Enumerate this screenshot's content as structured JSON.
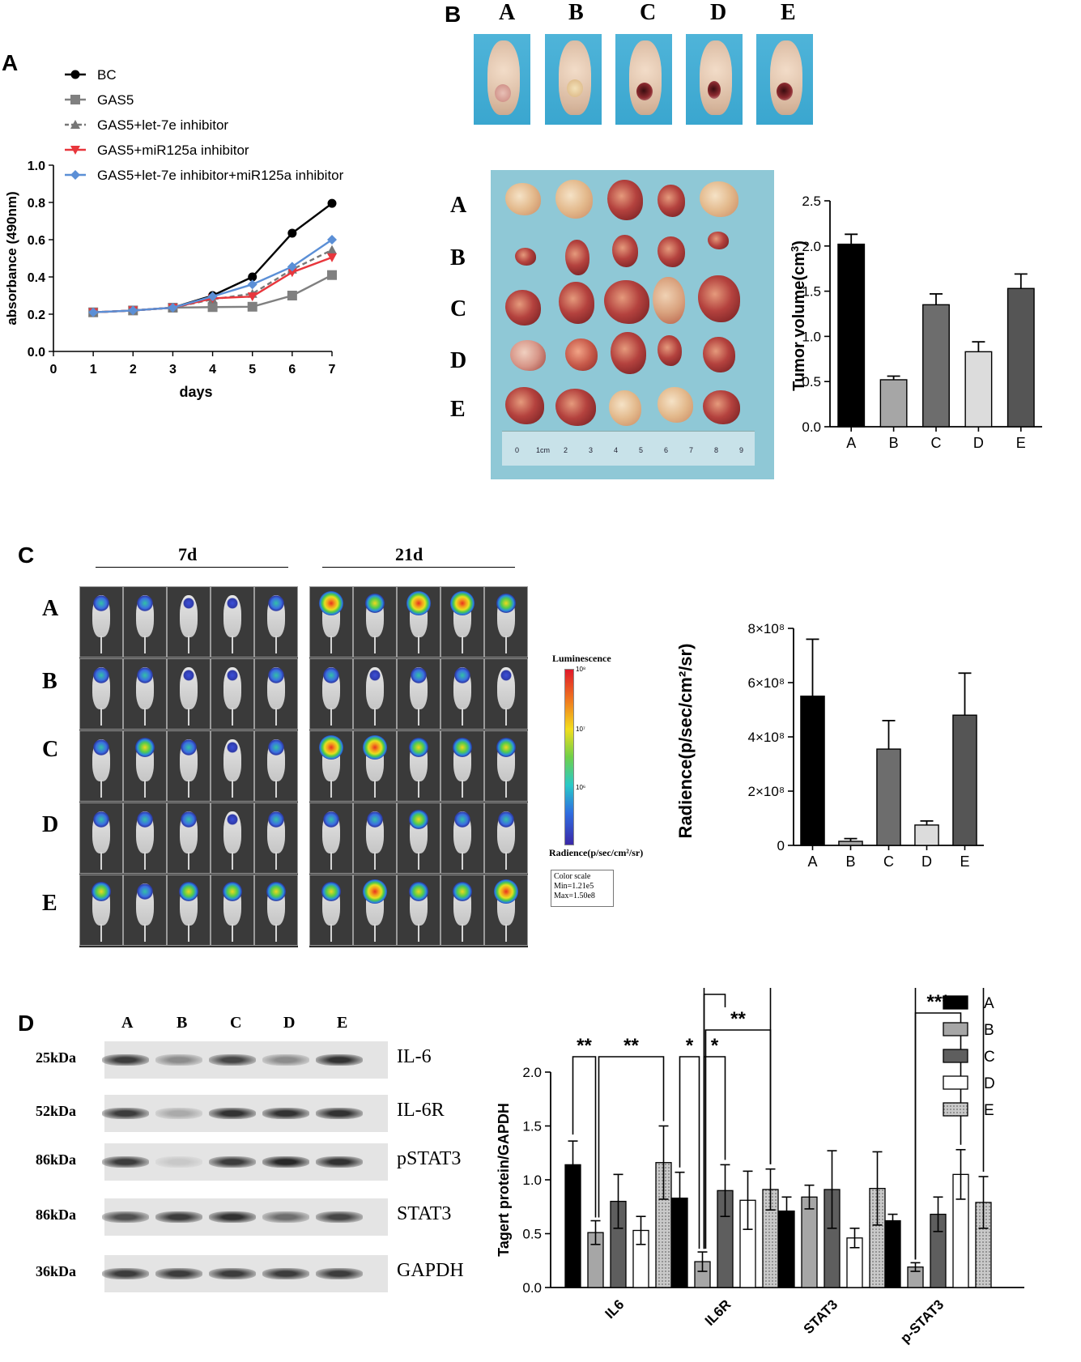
{
  "panels": {
    "a": "A",
    "b": "B",
    "c": "C",
    "d": "D"
  },
  "chart_data": [
    {
      "id": "growth",
      "type": "line",
      "xlabel": "days",
      "ylabel": "absorbance (490nm)",
      "xlim": [
        0,
        7
      ],
      "ylim": [
        0,
        1.0
      ],
      "x_ticks": [
        "0",
        "1",
        "2",
        "3",
        "4",
        "5",
        "6",
        "7"
      ],
      "y_ticks": [
        "0.0",
        "0.2",
        "0.4",
        "0.6",
        "0.8",
        "1.0"
      ],
      "x": [
        1,
        2,
        3,
        4,
        5,
        6,
        7
      ],
      "series": [
        {
          "name": "BC",
          "color": "#000000",
          "marker": "circle",
          "dashed": false,
          "values": [
            0.21,
            0.22,
            0.235,
            0.3,
            0.4,
            0.635,
            0.795
          ]
        },
        {
          "name": "GAS5",
          "color": "#808080",
          "marker": "square",
          "dashed": false,
          "values": [
            0.21,
            0.22,
            0.235,
            0.238,
            0.24,
            0.3,
            0.41
          ]
        },
        {
          "name": "GAS5+let-7e inhibitor",
          "color": "#777777",
          "marker": "triangle",
          "dashed": true,
          "values": [
            0.21,
            0.22,
            0.235,
            0.28,
            0.31,
            0.44,
            0.545
          ]
        },
        {
          "name": "GAS5+miR125a inhibitor",
          "color": "#e8363c",
          "marker": "triangle-down",
          "dashed": false,
          "values": [
            0.21,
            0.22,
            0.235,
            0.285,
            0.295,
            0.425,
            0.505
          ]
        },
        {
          "name": "GAS5+let-7e inhibitor+miR125a inhibitor",
          "color": "#5b8fd6",
          "marker": "diamond",
          "dashed": false,
          "values": [
            0.21,
            0.22,
            0.235,
            0.295,
            0.36,
            0.455,
            0.6
          ]
        }
      ]
    },
    {
      "id": "tumor-volume",
      "type": "bar",
      "ylabel": "Tumor volume(cm3)",
      "ylabel_main": "Tumor volume(cm",
      "ylabel_sup": "3",
      "ylabel_end": ")",
      "ylim": [
        0,
        2.5
      ],
      "y_ticks": [
        "0.0",
        "0.5",
        "1.0",
        "1.5",
        "2.0",
        "2.5"
      ],
      "categories": [
        "A",
        "B",
        "C",
        "D",
        "E"
      ],
      "values": [
        2.02,
        0.52,
        1.35,
        0.83,
        1.53
      ],
      "errors": [
        0.11,
        0.04,
        0.12,
        0.11,
        0.16
      ],
      "colors": [
        "#000000",
        "#a6a6a6",
        "#6d6d6d",
        "#dcdcdc",
        "#555555"
      ]
    },
    {
      "id": "radiance",
      "type": "bar",
      "ylabel": "Radience(p/sec/cm²/sr)",
      "ylim": [
        0,
        800000000
      ],
      "y_ticks": [
        "0",
        "2×10⁸",
        "4×10⁸",
        "6×10⁸",
        "8×10⁸"
      ],
      "categories": [
        "A",
        "B",
        "C",
        "D",
        "E"
      ],
      "values": [
        550000000,
        15000000,
        355000000,
        75000000,
        480000000
      ],
      "errors": [
        210000000,
        10000000,
        105000000,
        15000000,
        155000000
      ],
      "colors": [
        "#000000",
        "#a6a6a6",
        "#6d6d6d",
        "#dcdcdc",
        "#555555"
      ]
    },
    {
      "id": "protein",
      "type": "bar",
      "ylabel": "Tagert protein/GAPDH",
      "ylim": [
        0,
        2.0
      ],
      "y_ticks": [
        "0.0",
        "0.5",
        "1.0",
        "1.5",
        "2.0"
      ],
      "categories": [
        "IL6",
        "IL6R",
        "STAT3",
        "p-STAT3"
      ],
      "series": [
        {
          "name": "A",
          "values": [
            1.14,
            0.83,
            0.71,
            0.62
          ],
          "errors": [
            0.22,
            0.24,
            0.13,
            0.06
          ]
        },
        {
          "name": "B",
          "values": [
            0.51,
            0.24,
            0.84,
            0.19
          ],
          "errors": [
            0.11,
            0.09,
            0.11,
            0.04
          ]
        },
        {
          "name": "C",
          "values": [
            0.8,
            0.9,
            0.91,
            0.68
          ],
          "errors": [
            0.25,
            0.24,
            0.36,
            0.16
          ]
        },
        {
          "name": "D",
          "values": [
            0.53,
            0.81,
            0.46,
            1.05
          ],
          "errors": [
            0.13,
            0.27,
            0.09,
            0.23
          ]
        },
        {
          "name": "E",
          "values": [
            1.16,
            0.91,
            0.92,
            0.79
          ],
          "errors": [
            0.34,
            0.19,
            0.34,
            0.24
          ]
        }
      ],
      "significance": [
        "**",
        "**",
        "*",
        "**",
        "**",
        "*",
        "*",
        "***"
      ]
    }
  ],
  "panel_b": {
    "photo_labels": [
      "A",
      "B",
      "C",
      "D",
      "E"
    ],
    "row_labels": [
      "A",
      "B",
      "C",
      "D",
      "E"
    ],
    "ruler_labels": [
      "0",
      "1cm",
      "2",
      "3",
      "4",
      "5",
      "6",
      "7",
      "8",
      "9"
    ]
  },
  "panel_c": {
    "time_labels": [
      "7d",
      "21d"
    ],
    "row_labels": [
      "A",
      "B",
      "C",
      "D",
      "E"
    ],
    "scale_title": "Luminescence",
    "scale_unit": "Radience(p/sec/cm²/sr)",
    "scale_ticks": [
      "10⁸",
      "10⁷",
      "10⁶"
    ],
    "color_scale": {
      "title": "Color scale",
      "min": "Min=1.21e5",
      "max": "Max=1.50e8"
    }
  },
  "panel_d": {
    "lane_labels": [
      "A",
      "B",
      "C",
      "D",
      "E"
    ],
    "blots": [
      {
        "size": "25kDa",
        "protein": "IL-6",
        "intensity": [
          0.85,
          0.45,
          0.8,
          0.45,
          0.9
        ]
      },
      {
        "size": "52kDa",
        "protein": "IL-6R",
        "intensity": [
          0.85,
          0.3,
          0.9,
          0.9,
          0.9
        ]
      },
      {
        "size": "86kDa",
        "protein": "pSTAT3",
        "intensity": [
          0.85,
          0.15,
          0.85,
          0.95,
          0.9
        ]
      },
      {
        "size": "86kDa",
        "protein": "STAT3",
        "intensity": [
          0.75,
          0.85,
          0.9,
          0.6,
          0.8
        ]
      },
      {
        "size": "36kDa",
        "protein": "GAPDH",
        "intensity": [
          0.85,
          0.85,
          0.85,
          0.85,
          0.85
        ]
      }
    ]
  }
}
